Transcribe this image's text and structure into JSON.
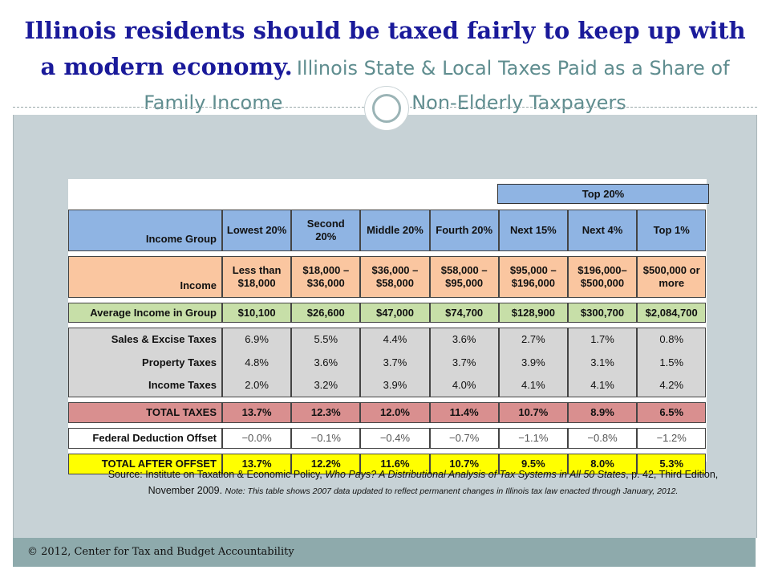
{
  "slide": {
    "title_bold": "Illinois residents should be taxed fairly to keep up with a modern economy.",
    "title_sub_1": "Illinois State & Local Taxes Paid as a Share of Family Income",
    "title_sub_2": "for Non-Elderly Taxpayers",
    "footer": "© 2012, Center for Tax and Budget Accountability"
  },
  "table": {
    "top20_label": "Top 20%",
    "header": {
      "label": "Income Group",
      "cols": [
        "Lowest 20%",
        "Second 20%",
        "Middle 20%",
        "Fourth 20%",
        "Next 15%",
        "Next 4%",
        "Top 1%"
      ]
    },
    "income": {
      "label": "Income",
      "cols": [
        "Less than $18,000",
        "$18,000 – $36,000",
        "$36,000 – $58,000",
        "$58,000 – $95,000",
        "$95,000 – $196,000",
        "$196,000– $500,000",
        "$500,000 or more"
      ]
    },
    "avg_income": {
      "label": "Average Income in Group",
      "cols": [
        "$10,100",
        "$26,600",
        "$47,000",
        "$74,700",
        "$128,900",
        "$300,700",
        "$2,084,700"
      ]
    },
    "sales": {
      "label": "Sales & Excise Taxes",
      "cols": [
        "6.9%",
        "5.5%",
        "4.4%",
        "3.6%",
        "2.7%",
        "1.7%",
        "0.8%"
      ]
    },
    "property": {
      "label": "Property Taxes",
      "cols": [
        "4.8%",
        "3.6%",
        "3.7%",
        "3.7%",
        "3.9%",
        "3.1%",
        "1.5%"
      ]
    },
    "income_tax": {
      "label": "Income Taxes",
      "cols": [
        "2.0%",
        "3.2%",
        "3.9%",
        "4.0%",
        "4.1%",
        "4.1%",
        "4.2%"
      ]
    },
    "total": {
      "label": "TOTAL TAXES",
      "cols": [
        "13.7%",
        "12.3%",
        "12.0%",
        "11.4%",
        "10.7%",
        "8.9%",
        "6.5%"
      ]
    },
    "offset": {
      "label": "Federal Deduction Offset",
      "cols": [
        "−0.0%",
        "−0.1%",
        "−0.4%",
        "−0.7%",
        "−1.1%",
        "−0.8%",
        "−1.2%"
      ]
    },
    "after": {
      "label": "TOTAL AFTER OFFSET",
      "cols": [
        "13.7%",
        "12.2%",
        "11.6%",
        "10.7%",
        "9.5%",
        "8.0%",
        "5.3%"
      ]
    }
  },
  "source": {
    "prefix": "Source: Institute on Taxation & Economic Policy, ",
    "title": "Who Pays? A Distributional Analysis of Tax Systems in All 50 States",
    "suffix": ", p. 42, Third Edition,",
    "date": "November 2009.",
    "note": "Note: This table shows 2007 data updated to reflect permanent changes in Illinois tax law enacted through January, 2012."
  },
  "colors": {
    "title": "#1a1a9a",
    "subtitle": "#5f8d8f",
    "content_bg": "#c7d2d6",
    "footer_bg": "#8eaaac",
    "header": "#8fb4e3",
    "income": "#fac6a0",
    "avg": "#c7dfa8",
    "taxes": "#d6d6d6",
    "total": "#d98f8f",
    "after": "#ffff00"
  }
}
